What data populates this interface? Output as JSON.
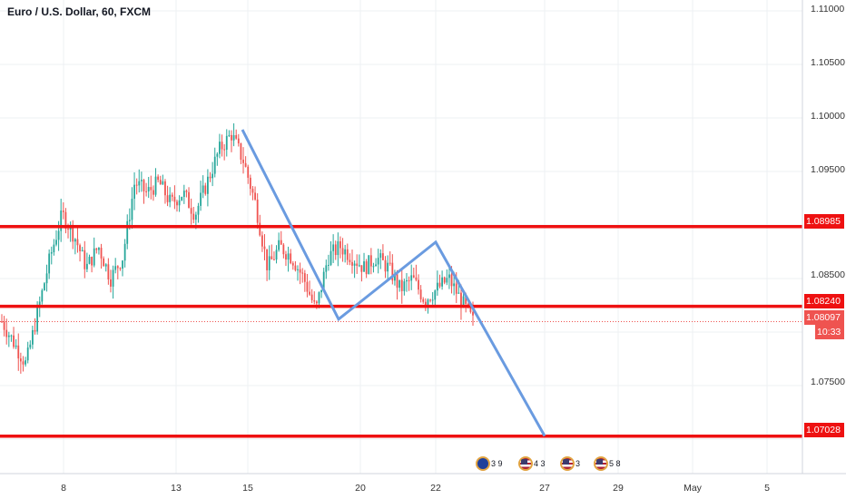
{
  "header": {
    "title": "Euro / U.S. Dollar, 60, FXCM"
  },
  "y_axis": {
    "ticks": [
      "1.11000",
      "1.10500",
      "1.10000",
      "1.09500",
      "1.08500",
      "1.07500"
    ]
  },
  "x_axis": {
    "ticks": [
      "8",
      "13",
      "15",
      "20",
      "22",
      "27",
      "29",
      "May",
      "5"
    ]
  },
  "price_labels": {
    "upper_level": "1.08985",
    "middle_level": "1.08240",
    "current_price": "1.08097",
    "countdown": "10:33",
    "lower_level": "1.07028"
  },
  "events": [
    {
      "counts": "3 9"
    },
    {
      "counts": "4 3"
    },
    {
      "counts": "3"
    },
    {
      "counts": "5 8"
    }
  ],
  "colors": {
    "level_line": "#ee1111",
    "pattern_line": "#6a9be0",
    "candle_up": "#26a69a",
    "candle_down": "#ef5350",
    "grid": "#eef0f3",
    "current_price_label": "#ef5350",
    "countdown_label": "#ef5350"
  },
  "chart_data": {
    "type": "candlestick",
    "title": "Euro / U.S. Dollar, 60, FXCM",
    "x_ticks": [
      "8",
      "13",
      "15",
      "20",
      "22",
      "27",
      "29",
      "May",
      "5"
    ],
    "ylim": [
      1.0665,
      1.111
    ],
    "y_ticks": [
      1.11,
      1.105,
      1.1,
      1.095,
      1.085,
      1.075
    ],
    "grid": true,
    "horizontal_levels": [
      1.08985,
      1.0824,
      1.07028
    ],
    "current_price": 1.08097,
    "price_path": [
      1.081,
      1.079,
      1.077,
      1.082,
      1.087,
      1.091,
      1.089,
      1.086,
      1.088,
      1.085,
      1.087,
      1.094,
      1.093,
      1.094,
      1.092,
      1.093,
      1.091,
      1.094,
      1.097,
      1.0985,
      1.096,
      1.092,
      1.086,
      1.088,
      1.087,
      1.085,
      1.082,
      1.087,
      1.088,
      1.087,
      1.086,
      1.087,
      1.086,
      1.084,
      1.085,
      1.083,
      1.084,
      1.085,
      1.083,
      1.081
    ],
    "pattern_line": [
      {
        "x": "15",
        "y": 1.0989
      },
      {
        "x": "19",
        "y": 1.0812
      },
      {
        "x": "22",
        "y": 1.0884
      },
      {
        "x": "27",
        "y": 1.0703
      }
    ]
  }
}
